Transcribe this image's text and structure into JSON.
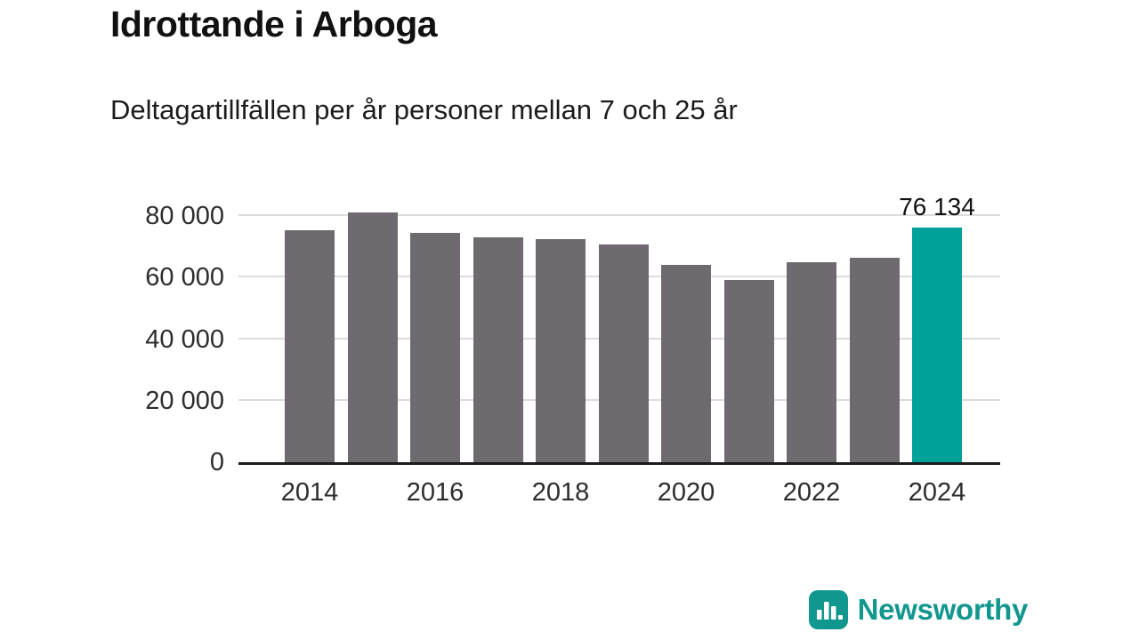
{
  "page": {
    "title": "Idrottande i Arboga",
    "subtitle": "Deltagartillfällen per år personer mellan 7 och 25 år"
  },
  "chart_data": {
    "type": "bar",
    "title": "Idrottande i Arboga",
    "subtitle": "Deltagartillfällen per år personer mellan 7 och 25 år",
    "categories": [
      2014,
      2015,
      2016,
      2017,
      2018,
      2019,
      2020,
      2021,
      2022,
      2023,
      2024
    ],
    "values": [
      75500,
      81300,
      74600,
      73200,
      72600,
      70900,
      64000,
      59300,
      65100,
      66500,
      76134
    ],
    "highlight_index": 10,
    "highlight_label": "76 134",
    "bar_color": "#6f6a6f",
    "highlight_color": "#00a199",
    "ylim": [
      0,
      80000
    ],
    "yticks": [
      0,
      20000,
      40000,
      60000,
      80000
    ],
    "ytick_labels": [
      "0",
      "20 000",
      "40 000",
      "60 000",
      "80 000"
    ],
    "xtick_labels": [
      "2014",
      "2016",
      "2018",
      "2020",
      "2022",
      "2024"
    ],
    "grid": "horizontal",
    "legend": "none",
    "xlabel": "",
    "ylabel": ""
  },
  "branding": {
    "logo_text": "Newsworthy",
    "brand_color": "#12978f"
  }
}
